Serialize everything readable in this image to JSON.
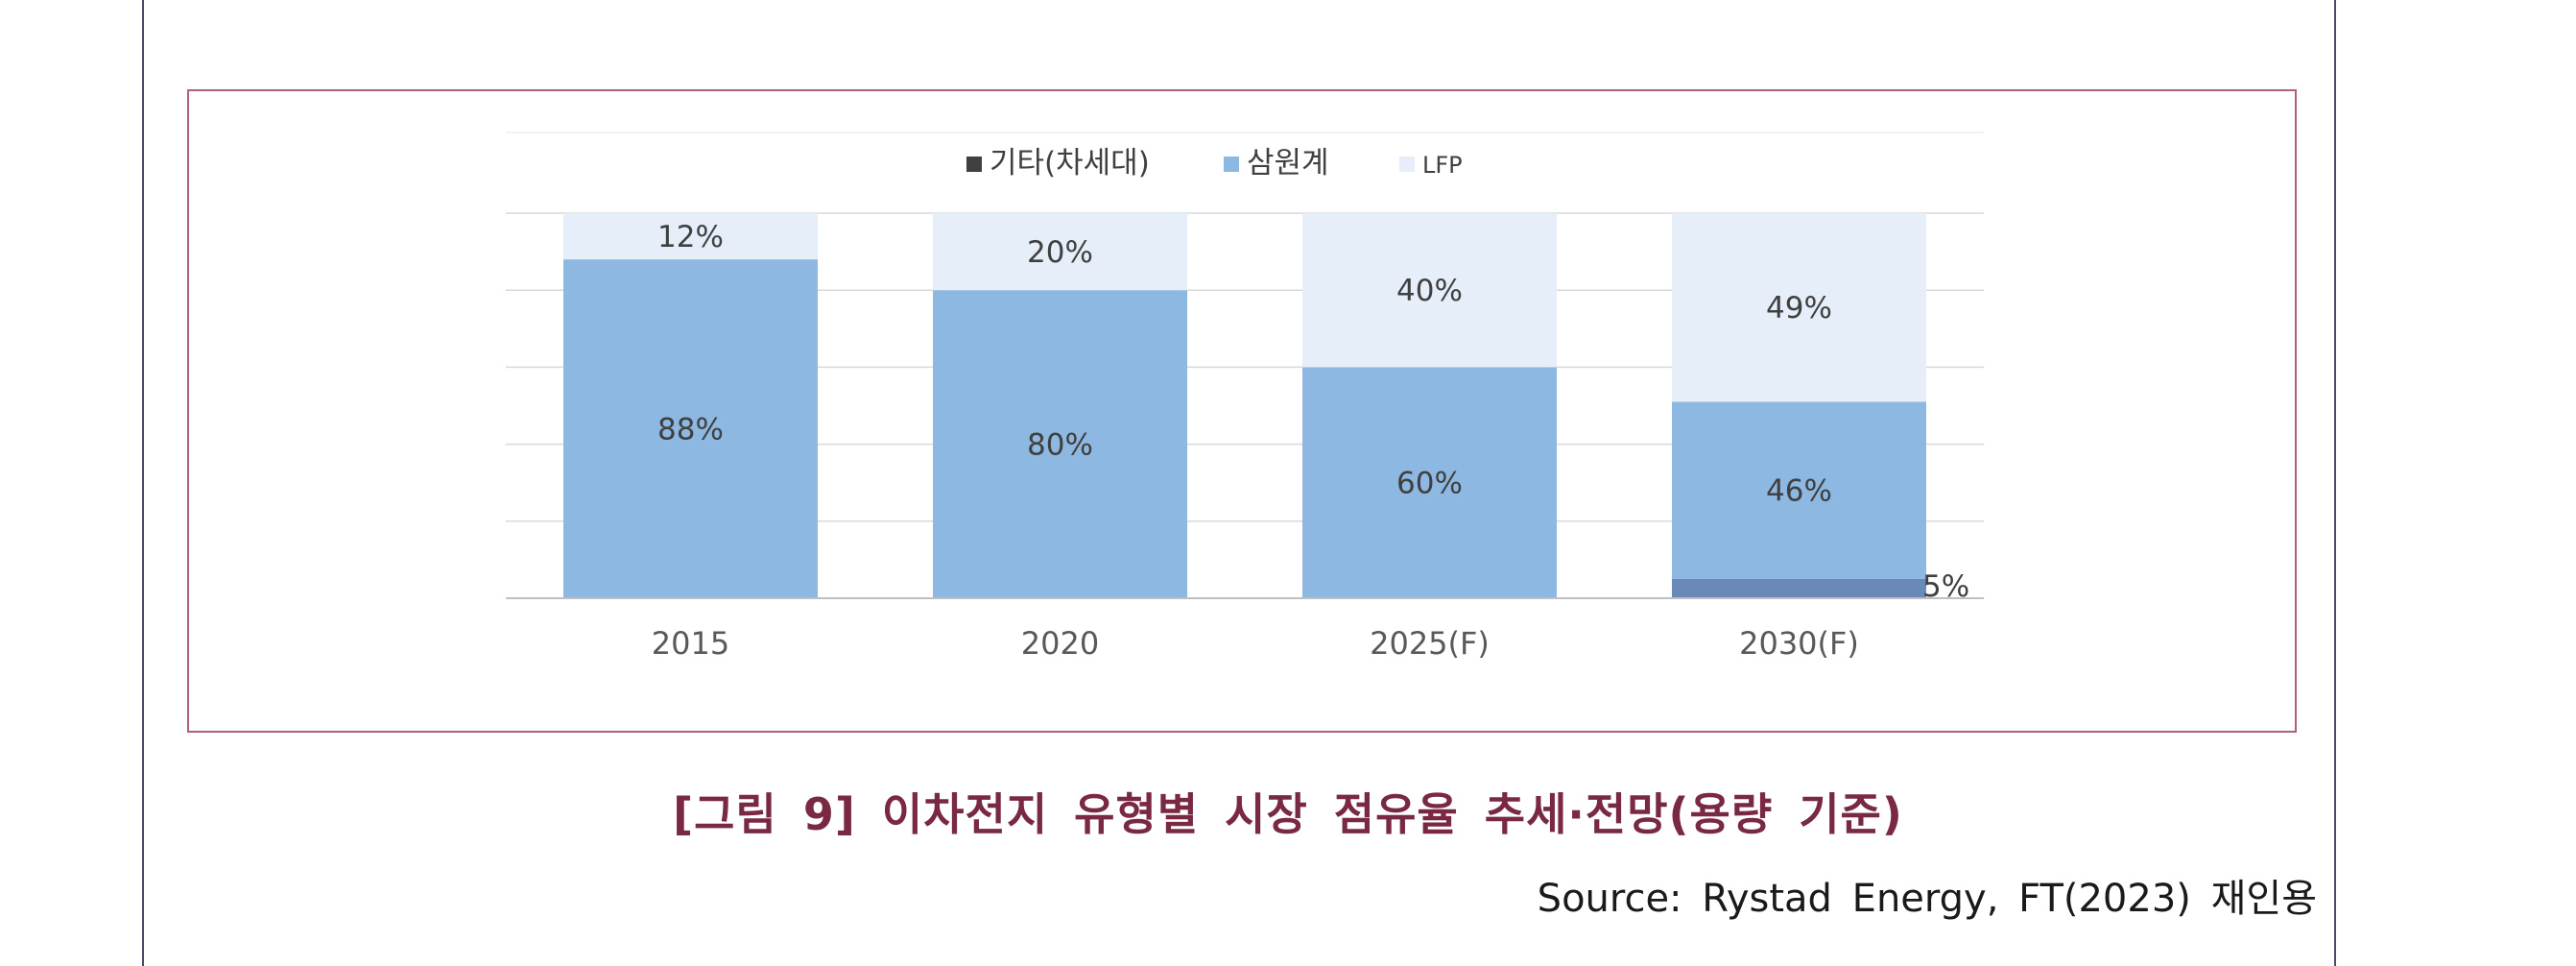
{
  "chart_data": {
    "type": "bar",
    "stacked": true,
    "percent": true,
    "categories": [
      "2015",
      "2020",
      "2025(F)",
      "2030(F)"
    ],
    "series": [
      {
        "name": "기타(차세대)",
        "values": [
          0,
          0,
          0,
          5
        ],
        "labels": [
          "",
          "",
          "",
          "5%"
        ]
      },
      {
        "name": "삼원계",
        "values": [
          88,
          80,
          60,
          46
        ],
        "labels": [
          "88%",
          "80%",
          "60%",
          "46%"
        ]
      },
      {
        "name": "LFP",
        "values": [
          12,
          20,
          40,
          49
        ],
        "labels": [
          "12%",
          "20%",
          "40%",
          "49%"
        ]
      }
    ],
    "ylim": [
      0,
      100
    ],
    "grid": true,
    "legend_position": "top",
    "colors": {
      "기타(차세대)": "#6a88b8",
      "삼원계": "#8db8e2",
      "LFP": "#e6eff9"
    }
  },
  "caption": "[그림 9] 이차전지 유형별 시장 점유율 추세·전망(용량 기준)",
  "source": "Source: Rystad Energy, FT(2023) 재인용",
  "colors": {
    "caption": "#7a2942",
    "frame_border": "#b0607a",
    "gridline": "#d9d9d9",
    "axis_text": "#595959",
    "label_text": "#404040",
    "legend_marker_other": "#404040"
  }
}
